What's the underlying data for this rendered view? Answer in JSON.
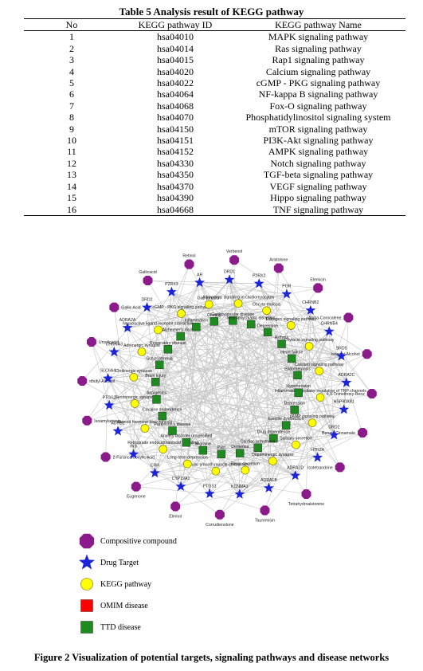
{
  "table": {
    "title": "Table 5 Analysis result of KEGG pathway",
    "headers": [
      "No",
      "KEGG pathway ID",
      "KEGG pathway Name"
    ],
    "rows": [
      [
        "1",
        "hsa04010",
        "MAPK signaling pathway"
      ],
      [
        "2",
        "hsa04014",
        "Ras signaling pathway"
      ],
      [
        "3",
        "hsa04015",
        "Rap1 signaling pathway"
      ],
      [
        "4",
        "hsa04020",
        "Calcium signaling pathway"
      ],
      [
        "5",
        "hsa04022",
        "cGMP - PKG signaling pathway"
      ],
      [
        "6",
        "hsa04064",
        "NF-kappa B signaling pathway"
      ],
      [
        "7",
        "hsa04068",
        "Fox-O signaling pathway"
      ],
      [
        "8",
        "hsa04070",
        "Phosphatidylinositol signaling system"
      ],
      [
        "9",
        "hsa04150",
        "mTOR signaling pathway"
      ],
      [
        "10",
        "hsa04151",
        "PI3K-Akt signaling pathway"
      ],
      [
        "11",
        "hsa04152",
        "AMPK signaling pathway"
      ],
      [
        "12",
        "hsa04330",
        "Notch signaling pathway"
      ],
      [
        "13",
        "hsa04350",
        "TGF-beta signaling pathway"
      ],
      [
        "14",
        "hsa04370",
        "VEGF signaling pathway"
      ],
      [
        "15",
        "hsa04390",
        "Hippo signaling pathway"
      ],
      [
        "16",
        "hsa04668",
        "TNF signaling pathway"
      ]
    ]
  },
  "network": {
    "colors": {
      "compound": "#8b1a8b",
      "target": "#1b24d6",
      "pathway": "#ffff00",
      "omim": "#ff0000",
      "ttd": "#1f8a1f",
      "edge": "#c6c6c6"
    },
    "compounds": [
      "Verbenol",
      "Aristolone",
      "Elemicin",
      "Alpha-Corocalene",
      "Isoamyl Alcohol",
      "4,5-Trimethoxy-Benz",
      "Benzyl Cinnamate",
      "Isotetrandrine",
      "Tetrahydroalstonine",
      "Tauremisin",
      "Corrudienolone",
      "Elemol",
      "Eugenone",
      "2-Furancarboxylic Acid",
      "Isoamylamine",
      "obutyl Alcohol",
      "Ursolicacid",
      "Gallic Acid",
      "Gallicacid",
      "Retinol"
    ],
    "targets": [
      "DRD1",
      "P2RX2",
      "PGR",
      "CHRNB2",
      "CHRNB4",
      "SRD5",
      "ADRA2C",
      "HSP90AB1",
      "DRD2",
      "HTR2A",
      "ADRA1D",
      "ADRA1B",
      "KCNMA1",
      "PTGS1",
      "CYP19A1",
      "CRH",
      "INS",
      "ADRB1",
      "PTGS2",
      "SLC6A4",
      "CHRNA3",
      "ADRA2A",
      "DRD2",
      "P2RX3",
      "AR"
    ],
    "pathways": [
      "Adrenergic signaling in cardiomyocytes",
      "Oocyte meiosis",
      "Estrogen signaling pathway",
      "Oxytocin signaling pathway",
      "Calcium signaling pathway",
      "Inflammatory mediator regulation of TRP channels",
      "cAMP signaling pathway",
      "Salivary secretion",
      "Dopaminergic synapse",
      "Renin secretion",
      "Vascular smooth muscle contraction",
      "Long-term depression",
      "Retrograde endocannabinoid signaling",
      "Steroid hormone biosynthesis",
      "Serotonergic synapse",
      "Cholinergic synapse",
      "Adrenergic synapse",
      "Neuroactive ligand-receptor interaction",
      "cGMP - PKG signaling pathway",
      "Gap junction"
    ],
    "diseases": [
      "Cardiovascular disease",
      "Neuropsychiatric disorders",
      "Depression",
      "Asthma",
      "Heart failure",
      "Endometriosis",
      "Hypertension",
      "Depression",
      "Erectile dysfunction",
      "Drug dependence",
      "Cardiac arrhythmia",
      "Dementia",
      "Pain",
      "Migraine",
      "Anxiety disorder unspecified",
      "Parkinson's disease",
      "Cocaine dependence",
      "Analgesics",
      "Brain injury",
      "Schizophrenia",
      "Respiratory disease",
      "Alzheimer's disease",
      "Inflammation",
      "Obesity"
    ]
  },
  "legend": [
    {
      "shape": "octagon",
      "color": "#8b1a8b",
      "label": "Compositive compound"
    },
    {
      "shape": "star",
      "color": "#1b24d6",
      "label": "Drug Target"
    },
    {
      "shape": "circle",
      "color": "#ffff00",
      "label": "KEGG pathway"
    },
    {
      "shape": "square",
      "color": "#ff0000",
      "label": "OMIM disease"
    },
    {
      "shape": "square",
      "color": "#1f8a1f",
      "label": "TTD disease"
    }
  ],
  "caption": "Figure 2 Visualization of potential targets, signaling pathways and disease networks"
}
